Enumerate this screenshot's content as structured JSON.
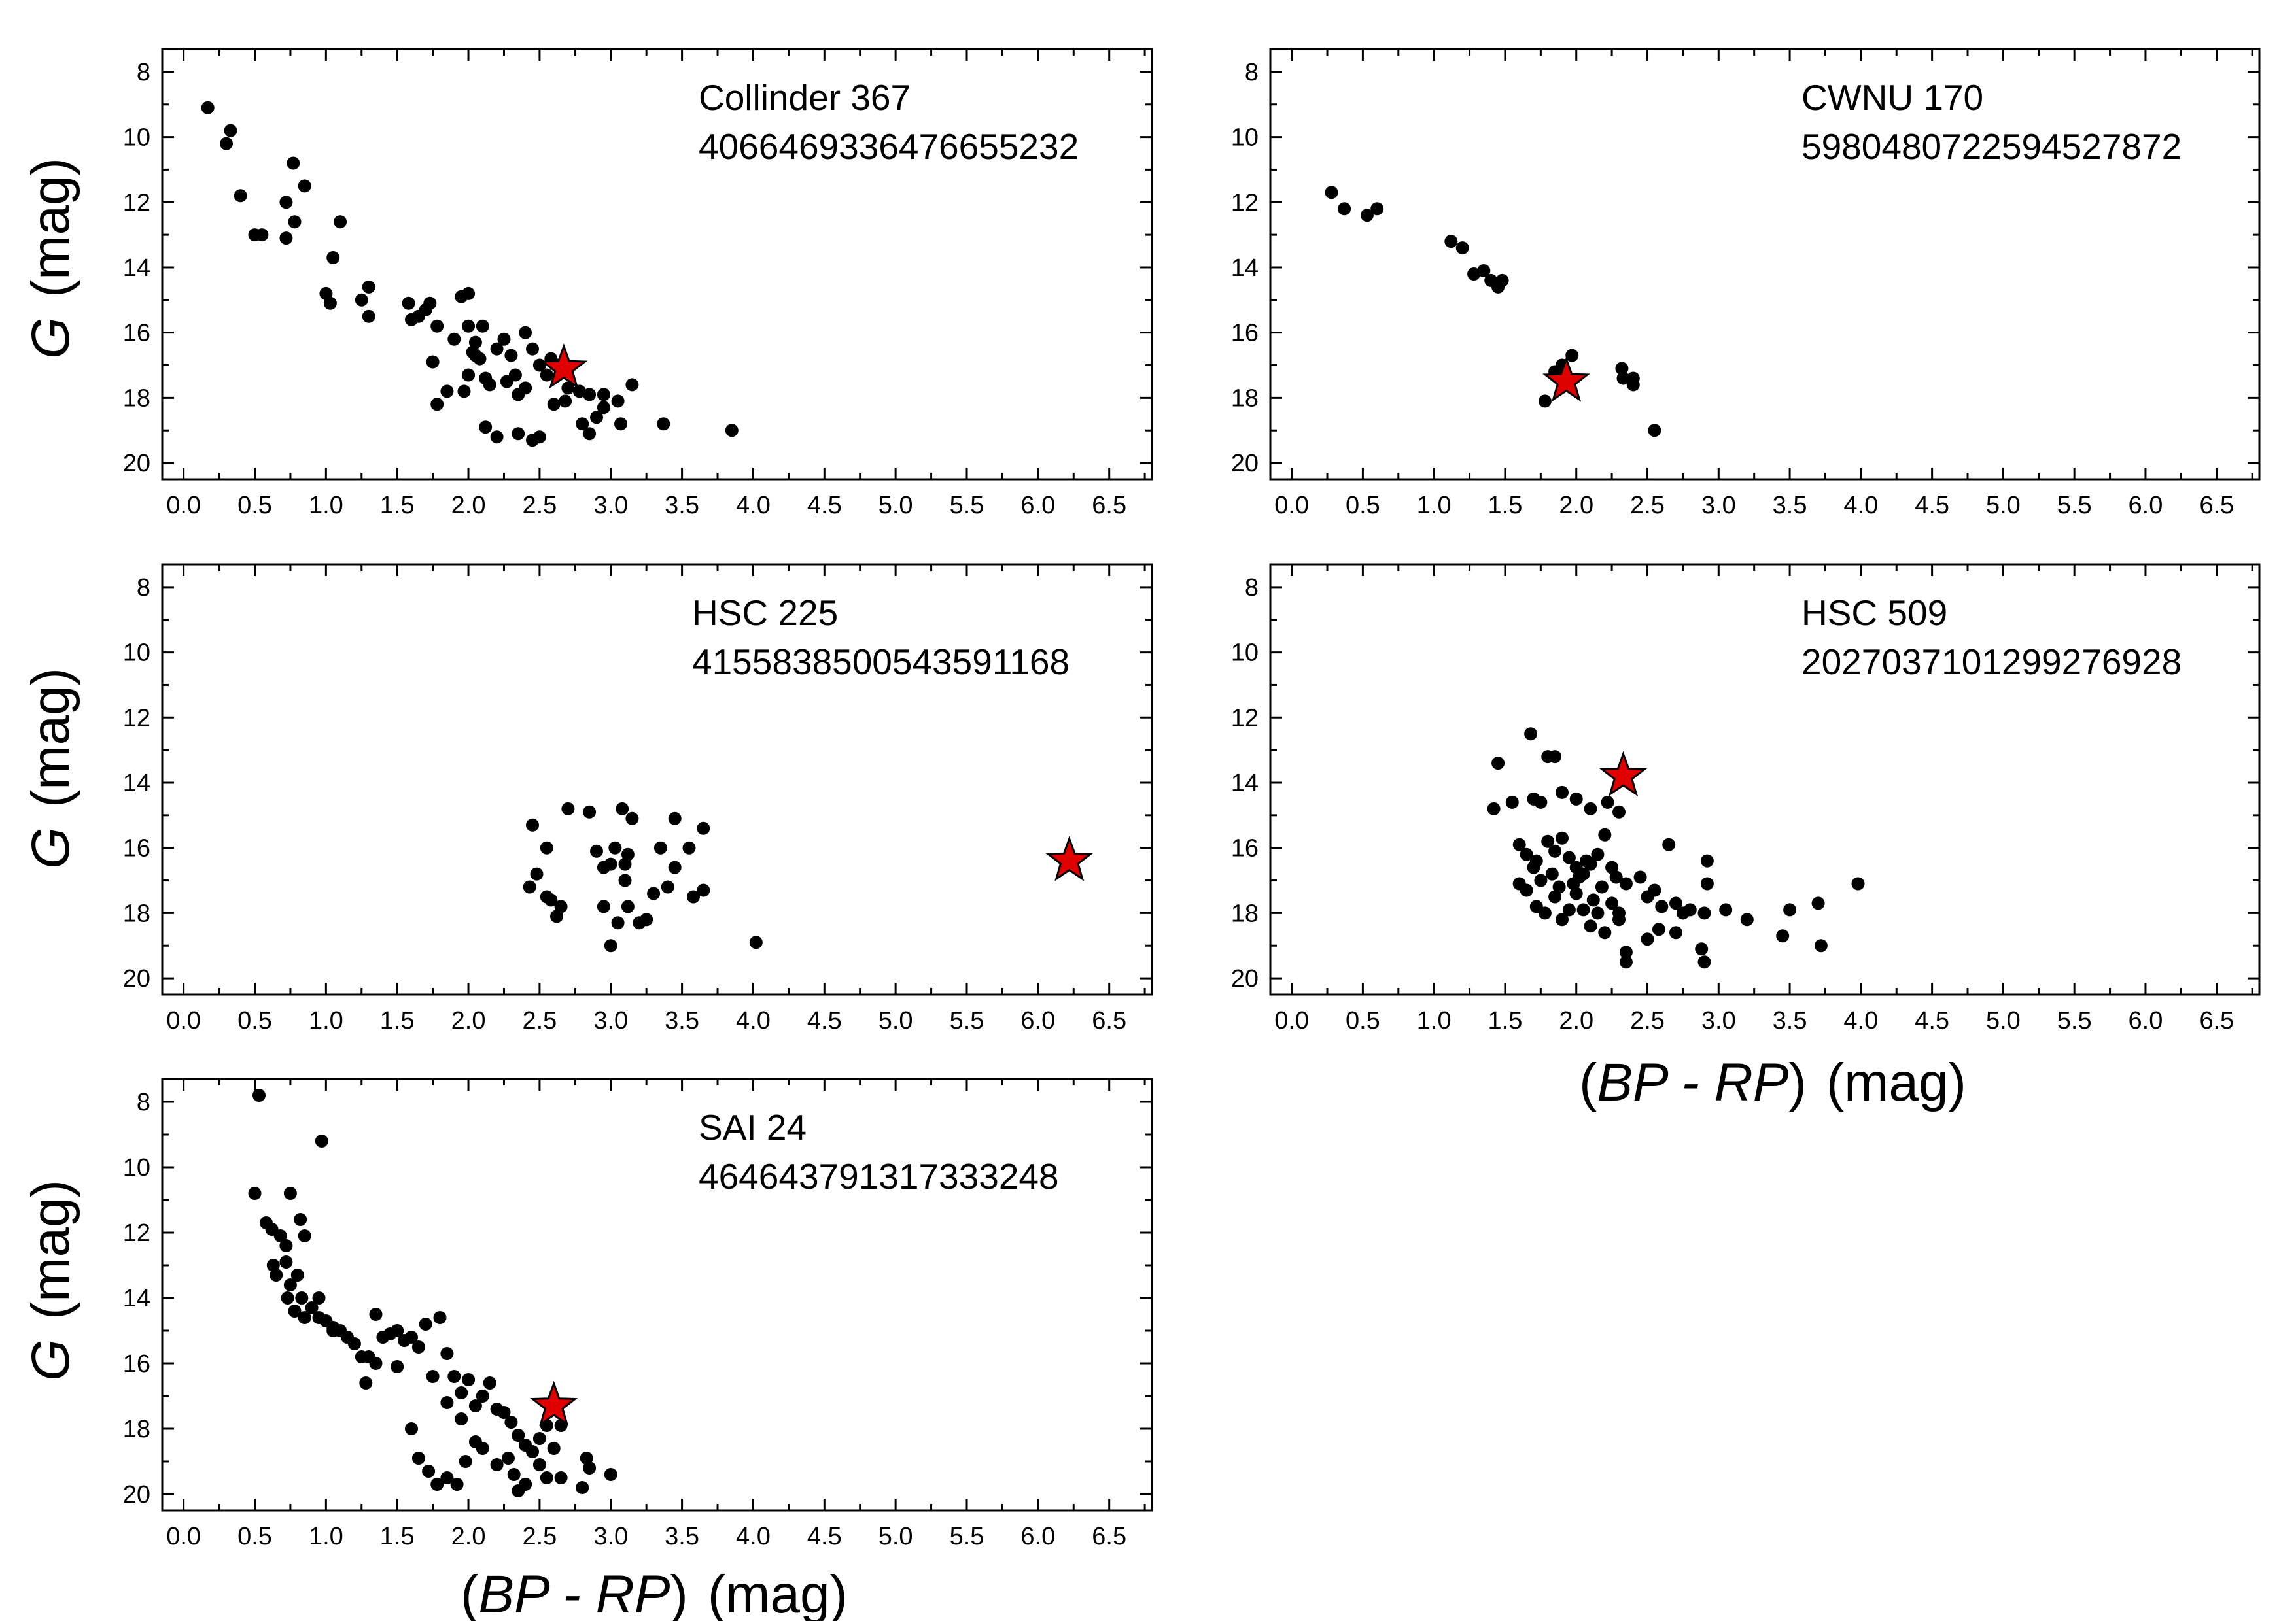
{
  "figure": {
    "y_axis_title_italic": "G",
    "y_axis_title_unit": "(mag)",
    "x_axis_title_open": "(",
    "x_axis_title_italic": "BP - RP",
    "x_axis_title_close": ")",
    "x_axis_title_unit": "(mag)"
  },
  "chart_data": [
    {
      "type": "scatter",
      "title": "Collinder 367",
      "subtitle": "4066469336476655232",
      "xlim": [
        -0.15,
        6.8
      ],
      "ylim": [
        7.3,
        20.5
      ],
      "y_inverted": true,
      "xticks": [
        "0.0",
        "0.5",
        "1.0",
        "1.5",
        "2.0",
        "2.5",
        "3.0",
        "3.5",
        "4.0",
        "4.5",
        "5.0",
        "5.5",
        "6.0",
        "6.5"
      ],
      "yticks": [
        "8",
        "10",
        "12",
        "14",
        "16",
        "18",
        "20"
      ],
      "target": {
        "x": 2.67,
        "y": 17.1
      },
      "points": [
        [
          0.17,
          9.1
        ],
        [
          0.33,
          9.8
        ],
        [
          0.3,
          10.2
        ],
        [
          0.4,
          11.8
        ],
        [
          0.5,
          13.0
        ],
        [
          0.55,
          13.0
        ],
        [
          0.72,
          12.0
        ],
        [
          0.72,
          13.1
        ],
        [
          0.77,
          10.8
        ],
        [
          0.78,
          12.6
        ],
        [
          0.85,
          11.5
        ],
        [
          1.1,
          12.6
        ],
        [
          1.05,
          13.7
        ],
        [
          1.0,
          14.8
        ],
        [
          1.03,
          15.1
        ],
        [
          1.25,
          15.0
        ],
        [
          1.3,
          14.6
        ],
        [
          1.3,
          15.5
        ],
        [
          1.58,
          15.1
        ],
        [
          1.6,
          15.6
        ],
        [
          1.65,
          15.5
        ],
        [
          1.7,
          15.3
        ],
        [
          1.73,
          15.1
        ],
        [
          1.78,
          15.8
        ],
        [
          1.75,
          16.9
        ],
        [
          1.78,
          18.2
        ],
        [
          1.85,
          17.8
        ],
        [
          1.9,
          16.2
        ],
        [
          1.95,
          14.9
        ],
        [
          2.0,
          14.8
        ],
        [
          2.0,
          15.8
        ],
        [
          2.03,
          16.6
        ],
        [
          2.05,
          16.3
        ],
        [
          2.08,
          16.8
        ],
        [
          2.1,
          15.8
        ],
        [
          2.12,
          17.4
        ],
        [
          2.15,
          17.6
        ],
        [
          2.2,
          16.5
        ],
        [
          2.25,
          16.2
        ],
        [
          2.3,
          16.7
        ],
        [
          2.33,
          17.3
        ],
        [
          2.35,
          17.9
        ],
        [
          2.4,
          16.0
        ],
        [
          2.45,
          16.5
        ],
        [
          2.5,
          17.0
        ],
        [
          2.55,
          17.3
        ],
        [
          2.58,
          16.8
        ],
        [
          2.63,
          17.0
        ],
        [
          2.7,
          17.7
        ],
        [
          2.78,
          17.8
        ],
        [
          2.85,
          17.9
        ],
        [
          2.95,
          17.9
        ],
        [
          3.05,
          18.1
        ],
        [
          3.15,
          17.6
        ],
        [
          2.0,
          17.3
        ],
        [
          1.97,
          17.8
        ],
        [
          2.12,
          18.9
        ],
        [
          2.2,
          19.2
        ],
        [
          2.35,
          19.1
        ],
        [
          2.45,
          19.3
        ],
        [
          2.5,
          19.2
        ],
        [
          2.68,
          18.1
        ],
        [
          2.8,
          18.8
        ],
        [
          2.85,
          19.1
        ],
        [
          2.9,
          18.6
        ],
        [
          2.95,
          18.3
        ],
        [
          3.07,
          18.8
        ],
        [
          3.37,
          18.8
        ],
        [
          3.85,
          19.0
        ],
        [
          2.05,
          16.7
        ],
        [
          2.27,
          17.5
        ],
        [
          2.4,
          17.7
        ],
        [
          2.6,
          18.2
        ]
      ]
    },
    {
      "type": "scatter",
      "title": "CWNU 170",
      "subtitle": "5980480722594527872",
      "xlim": [
        -0.15,
        6.8
      ],
      "ylim": [
        7.3,
        20.5
      ],
      "y_inverted": true,
      "xticks": [
        "0.0",
        "0.5",
        "1.0",
        "1.5",
        "2.0",
        "2.5",
        "3.0",
        "3.5",
        "4.0",
        "4.5",
        "5.0",
        "5.5",
        "6.0",
        "6.5"
      ],
      "yticks": [
        "8",
        "10",
        "12",
        "14",
        "16",
        "18",
        "20"
      ],
      "target": {
        "x": 1.93,
        "y": 17.5
      },
      "points": [
        [
          0.28,
          11.7
        ],
        [
          0.37,
          12.2
        ],
        [
          0.53,
          12.4
        ],
        [
          0.6,
          12.2
        ],
        [
          1.12,
          13.2
        ],
        [
          1.2,
          13.4
        ],
        [
          1.28,
          14.2
        ],
        [
          1.35,
          14.1
        ],
        [
          1.4,
          14.4
        ],
        [
          1.45,
          14.6
        ],
        [
          1.48,
          14.4
        ],
        [
          1.78,
          18.1
        ],
        [
          1.85,
          17.2
        ],
        [
          1.9,
          17.0
        ],
        [
          1.97,
          16.7
        ],
        [
          2.32,
          17.1
        ],
        [
          2.33,
          17.4
        ],
        [
          2.4,
          17.4
        ],
        [
          2.4,
          17.6
        ],
        [
          2.55,
          19.0
        ]
      ]
    },
    {
      "type": "scatter",
      "title": "HSC 225",
      "subtitle": "4155838500543591168",
      "xlim": [
        -0.15,
        6.8
      ],
      "ylim": [
        7.3,
        20.5
      ],
      "y_inverted": true,
      "xticks": [
        "0.0",
        "0.5",
        "1.0",
        "1.5",
        "2.0",
        "2.5",
        "3.0",
        "3.5",
        "4.0",
        "4.5",
        "5.0",
        "5.5",
        "6.0",
        "6.5"
      ],
      "yticks": [
        "8",
        "10",
        "12",
        "14",
        "16",
        "18",
        "20"
      ],
      "target": {
        "x": 6.22,
        "y": 16.4
      },
      "points": [
        [
          2.45,
          15.3
        ],
        [
          2.48,
          16.8
        ],
        [
          2.43,
          17.2
        ],
        [
          2.55,
          16.0
        ],
        [
          2.58,
          17.6
        ],
        [
          2.62,
          18.1
        ],
        [
          2.65,
          17.8
        ],
        [
          2.7,
          14.8
        ],
        [
          2.85,
          14.9
        ],
        [
          2.9,
          16.1
        ],
        [
          2.95,
          16.6
        ],
        [
          2.95,
          17.8
        ],
        [
          3.0,
          19.0
        ],
        [
          3.03,
          16.0
        ],
        [
          3.05,
          18.3
        ],
        [
          3.08,
          14.8
        ],
        [
          3.1,
          17.0
        ],
        [
          3.12,
          16.2
        ],
        [
          3.12,
          17.8
        ],
        [
          3.15,
          15.1
        ],
        [
          3.2,
          18.3
        ],
        [
          3.25,
          18.2
        ],
        [
          3.3,
          17.4
        ],
        [
          3.35,
          16.0
        ],
        [
          3.4,
          17.2
        ],
        [
          3.45,
          16.6
        ],
        [
          3.45,
          15.1
        ],
        [
          3.55,
          16.0
        ],
        [
          3.58,
          17.5
        ],
        [
          3.65,
          15.4
        ],
        [
          3.65,
          17.3
        ],
        [
          4.02,
          18.9
        ],
        [
          2.55,
          17.5
        ],
        [
          3.0,
          16.5
        ],
        [
          3.1,
          16.5
        ]
      ]
    },
    {
      "type": "scatter",
      "title": "HSC 509",
      "subtitle": "2027037101299276928",
      "xlim": [
        -0.15,
        6.8
      ],
      "ylim": [
        7.3,
        20.5
      ],
      "y_inverted": true,
      "xticks": [
        "0.0",
        "0.5",
        "1.0",
        "1.5",
        "2.0",
        "2.5",
        "3.0",
        "3.5",
        "4.0",
        "4.5",
        "5.0",
        "5.5",
        "6.0",
        "6.5"
      ],
      "yticks": [
        "8",
        "10",
        "12",
        "14",
        "16",
        "18",
        "20"
      ],
      "target": {
        "x": 2.33,
        "y": 13.8
      },
      "points": [
        [
          1.45,
          13.4
        ],
        [
          1.68,
          12.5
        ],
        [
          1.8,
          13.2
        ],
        [
          1.85,
          13.2
        ],
        [
          1.42,
          14.8
        ],
        [
          1.55,
          14.6
        ],
        [
          1.7,
          14.5
        ],
        [
          1.75,
          14.6
        ],
        [
          1.9,
          14.3
        ],
        [
          2.0,
          14.5
        ],
        [
          2.1,
          14.8
        ],
        [
          2.22,
          14.6
        ],
        [
          2.3,
          14.9
        ],
        [
          1.6,
          15.9
        ],
        [
          1.65,
          16.2
        ],
        [
          1.72,
          16.4
        ],
        [
          1.8,
          15.8
        ],
        [
          1.85,
          16.1
        ],
        [
          1.9,
          15.7
        ],
        [
          1.95,
          16.3
        ],
        [
          2.0,
          16.6
        ],
        [
          2.05,
          16.8
        ],
        [
          2.1,
          16.5
        ],
        [
          2.15,
          16.2
        ],
        [
          2.2,
          15.6
        ],
        [
          2.25,
          16.6
        ],
        [
          2.28,
          16.9
        ],
        [
          2.35,
          17.1
        ],
        [
          2.45,
          16.9
        ],
        [
          2.5,
          17.5
        ],
        [
          2.55,
          17.3
        ],
        [
          2.6,
          17.8
        ],
        [
          2.65,
          15.9
        ],
        [
          2.7,
          17.7
        ],
        [
          2.75,
          18.0
        ],
        [
          2.8,
          17.9
        ],
        [
          2.9,
          18.0
        ],
        [
          2.92,
          16.4
        ],
        [
          2.92,
          17.1
        ],
        [
          3.05,
          17.9
        ],
        [
          3.2,
          18.2
        ],
        [
          3.45,
          18.7
        ],
        [
          3.5,
          17.9
        ],
        [
          3.7,
          17.7
        ],
        [
          3.72,
          19.0
        ],
        [
          3.98,
          17.1
        ],
        [
          1.6,
          17.1
        ],
        [
          1.65,
          17.3
        ],
        [
          1.75,
          17.0
        ],
        [
          1.78,
          18.0
        ],
        [
          1.85,
          17.5
        ],
        [
          1.9,
          18.2
        ],
        [
          1.95,
          17.9
        ],
        [
          2.0,
          17.4
        ],
        [
          2.05,
          17.9
        ],
        [
          2.1,
          18.4
        ],
        [
          2.15,
          18.0
        ],
        [
          2.2,
          18.6
        ],
        [
          2.25,
          17.7
        ],
        [
          2.3,
          18.2
        ],
        [
          2.35,
          19.2
        ],
        [
          2.35,
          19.5
        ],
        [
          2.5,
          18.8
        ],
        [
          2.58,
          18.5
        ],
        [
          2.7,
          18.6
        ],
        [
          2.88,
          19.1
        ],
        [
          2.9,
          19.5
        ],
        [
          1.72,
          17.8
        ],
        [
          1.88,
          17.2
        ],
        [
          2.02,
          16.9
        ],
        [
          2.12,
          17.6
        ],
        [
          2.3,
          18.0
        ],
        [
          1.7,
          16.6
        ],
        [
          1.83,
          16.8
        ],
        [
          1.98,
          17.1
        ],
        [
          2.07,
          16.4
        ],
        [
          2.18,
          17.2
        ]
      ]
    },
    {
      "type": "scatter",
      "title": "SAI 24",
      "subtitle": "4646437913173332​48",
      "xlim": [
        -0.15,
        6.8
      ],
      "ylim": [
        7.3,
        20.5
      ],
      "y_inverted": true,
      "xticks": [
        "0.0",
        "0.5",
        "1.0",
        "1.5",
        "2.0",
        "2.5",
        "3.0",
        "3.5",
        "4.0",
        "4.5",
        "5.0",
        "5.5",
        "6.0",
        "6.5"
      ],
      "yticks": [
        "8",
        "10",
        "12",
        "14",
        "16",
        "18",
        "20"
      ],
      "target": {
        "x": 2.6,
        "y": 17.3
      },
      "points": [
        [
          0.53,
          7.8
        ],
        [
          0.97,
          9.2
        ],
        [
          0.5,
          10.8
        ],
        [
          0.75,
          10.8
        ],
        [
          0.58,
          11.7
        ],
        [
          0.62,
          11.9
        ],
        [
          0.68,
          12.1
        ],
        [
          0.72,
          12.4
        ],
        [
          0.82,
          11.6
        ],
        [
          0.85,
          12.1
        ],
        [
          0.63,
          13.0
        ],
        [
          0.65,
          13.3
        ],
        [
          0.72,
          12.9
        ],
        [
          0.75,
          13.6
        ],
        [
          0.8,
          13.3
        ],
        [
          0.73,
          14.0
        ],
        [
          0.78,
          14.4
        ],
        [
          0.83,
          14.0
        ],
        [
          0.85,
          14.6
        ],
        [
          0.9,
          14.3
        ],
        [
          0.95,
          14.6
        ],
        [
          1.0,
          14.7
        ],
        [
          1.05,
          14.9
        ],
        [
          1.1,
          15.0
        ],
        [
          1.15,
          15.2
        ],
        [
          1.2,
          15.4
        ],
        [
          1.25,
          15.8
        ],
        [
          1.3,
          15.8
        ],
        [
          1.35,
          14.5
        ],
        [
          1.4,
          15.2
        ],
        [
          1.45,
          15.1
        ],
        [
          1.5,
          15.0
        ],
        [
          1.55,
          15.3
        ],
        [
          1.6,
          15.2
        ],
        [
          1.65,
          15.5
        ],
        [
          1.7,
          14.8
        ],
        [
          1.75,
          16.4
        ],
        [
          1.8,
          14.6
        ],
        [
          1.85,
          15.7
        ],
        [
          1.9,
          16.4
        ],
        [
          1.95,
          16.9
        ],
        [
          2.0,
          16.5
        ],
        [
          2.05,
          17.3
        ],
        [
          2.1,
          17.0
        ],
        [
          2.15,
          16.6
        ],
        [
          2.2,
          17.4
        ],
        [
          2.25,
          17.5
        ],
        [
          2.3,
          17.8
        ],
        [
          2.35,
          18.2
        ],
        [
          2.4,
          18.5
        ],
        [
          2.45,
          18.7
        ],
        [
          2.5,
          18.3
        ],
        [
          2.55,
          17.9
        ],
        [
          2.6,
          18.6
        ],
        [
          2.65,
          17.9
        ],
        [
          2.28,
          18.9
        ],
        [
          2.32,
          19.4
        ],
        [
          2.35,
          19.9
        ],
        [
          2.4,
          19.7
        ],
        [
          2.5,
          19.1
        ],
        [
          2.55,
          19.5
        ],
        [
          2.65,
          19.5
        ],
        [
          2.8,
          19.8
        ],
        [
          2.83,
          18.9
        ],
        [
          2.85,
          19.2
        ],
        [
          3.0,
          19.4
        ],
        [
          1.6,
          18.0
        ],
        [
          1.65,
          18.9
        ],
        [
          1.72,
          19.3
        ],
        [
          1.78,
          19.7
        ],
        [
          1.85,
          19.5
        ],
        [
          1.92,
          19.7
        ],
        [
          1.98,
          19.0
        ],
        [
          2.05,
          18.4
        ],
        [
          1.85,
          17.2
        ],
        [
          1.95,
          17.7
        ],
        [
          2.1,
          18.6
        ],
        [
          2.2,
          19.1
        ],
        [
          1.35,
          16.0
        ],
        [
          1.28,
          16.6
        ],
        [
          1.5,
          16.1
        ],
        [
          0.95,
          14.0
        ],
        [
          1.05,
          15.0
        ]
      ]
    }
  ]
}
